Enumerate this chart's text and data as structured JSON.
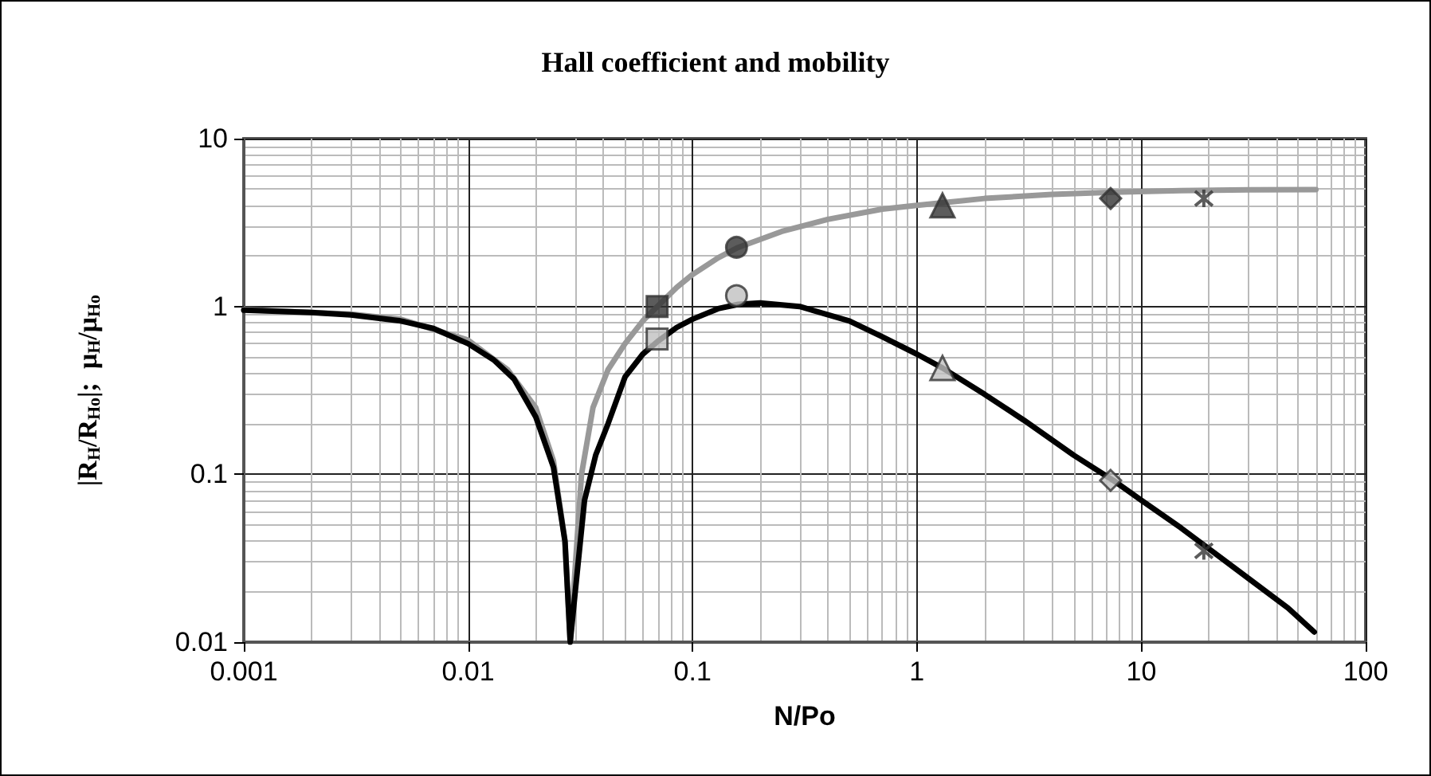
{
  "chart_data": {
    "type": "line",
    "title": "Hall coefficient and mobility",
    "xlabel": "N/Po",
    "ylabel": "|R$_{H}$/R$_{Ho}$|;  μ$_{H}$/μ$_{Ho}$",
    "log": "xy",
    "grid": true,
    "xlim": [
      0.001,
      100
    ],
    "xticks": [
      0.001,
      0.01,
      0.1,
      1,
      10,
      100
    ],
    "ylim": [
      0.01,
      10
    ],
    "yticks": [
      0.01,
      0.1,
      1,
      10
    ],
    "series": [
      {
        "color": "#999999",
        "marker": "none",
        "x": [
          0.001,
          0.003,
          0.005,
          0.01,
          0.015,
          0.02,
          0.024,
          0.027,
          0.0285,
          0.0295,
          0.032,
          0.036,
          0.042,
          0.05,
          0.06,
          0.085,
          0.1,
          0.13,
          0.16,
          0.25,
          0.4,
          0.7,
          1,
          1.3,
          2,
          4,
          7.5,
          15,
          30,
          60
        ],
        "values": [
          0.96,
          0.9,
          0.84,
          0.63,
          0.42,
          0.25,
          0.12,
          0.04,
          0.01,
          0.02,
          0.1,
          0.25,
          0.42,
          0.6,
          0.82,
          1.3,
          1.55,
          1.95,
          2.25,
          2.8,
          3.3,
          3.8,
          4.0,
          4.15,
          4.4,
          4.65,
          4.8,
          4.9,
          4.95,
          4.97
        ]
      },
      {
        "color": "#000000",
        "marker": "none",
        "x": [
          0.001,
          0.002,
          0.003,
          0.005,
          0.007,
          0.01,
          0.013,
          0.016,
          0.02,
          0.024,
          0.027,
          0.0285,
          0.03,
          0.033,
          0.037,
          0.042,
          0.05,
          0.06,
          0.07,
          0.085,
          0.1,
          0.13,
          0.16,
          0.2,
          0.3,
          0.5,
          0.7,
          1,
          1.3,
          2,
          3,
          5,
          7.5,
          10,
          15,
          20,
          30,
          45,
          59
        ],
        "values": [
          0.95,
          0.92,
          0.89,
          0.82,
          0.74,
          0.6,
          0.48,
          0.37,
          0.22,
          0.11,
          0.04,
          0.01,
          0.02,
          0.07,
          0.13,
          0.2,
          0.38,
          0.52,
          0.62,
          0.75,
          0.84,
          0.97,
          1.03,
          1.05,
          1.0,
          0.82,
          0.66,
          0.52,
          0.43,
          0.3,
          0.21,
          0.13,
          0.092,
          0.07,
          0.048,
          0.036,
          0.024,
          0.016,
          0.0115
        ]
      },
      {
        "type": "scatter",
        "color": "#333333",
        "marker": "square",
        "x": [
          0.0695
        ],
        "values": [
          1.0
        ]
      },
      {
        "type": "scatter",
        "color": "#333333",
        "marker": "circle",
        "x": [
          0.157
        ],
        "values": [
          2.25
        ]
      },
      {
        "type": "scatter",
        "color": "#333333",
        "marker": "triangle",
        "x": [
          1.3
        ],
        "values": [
          4.0
        ]
      },
      {
        "type": "scatter",
        "color": "#333333",
        "marker": "diamond",
        "x": [
          7.3
        ],
        "values": [
          4.4
        ]
      },
      {
        "type": "scatter",
        "color": "#333333",
        "marker": "cross",
        "x": [
          19
        ],
        "values": [
          4.4
        ]
      },
      {
        "type": "scatter",
        "color": "#c0c0c0",
        "marker": "square",
        "x": [
          0.0695
        ],
        "values": [
          0.64
        ]
      },
      {
        "type": "scatter",
        "color": "#c0c0c0",
        "marker": "circle",
        "x": [
          0.157
        ],
        "values": [
          1.16
        ]
      },
      {
        "type": "scatter",
        "color": "#c0c0c0",
        "marker": "triangle",
        "x": [
          1.3
        ],
        "values": [
          0.43
        ]
      },
      {
        "type": "scatter",
        "color": "#c0c0c0",
        "marker": "diamond",
        "x": [
          7.3
        ],
        "values": [
          0.092
        ]
      },
      {
        "type": "scatter",
        "color": "#333333",
        "marker": "cross",
        "x": [
          19
        ],
        "values": [
          0.035
        ]
      }
    ]
  }
}
